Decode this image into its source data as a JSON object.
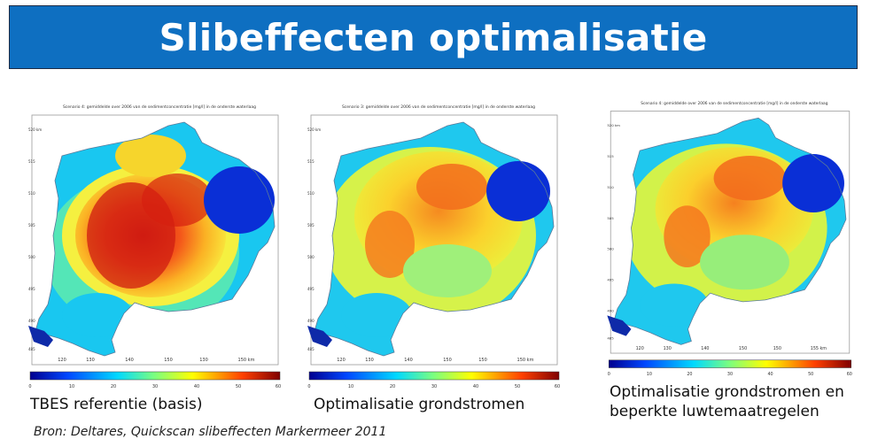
{
  "slide": {
    "title": "Slibeffecten optimalisatie",
    "source": "Bron: Deltares, Quickscan slibeffecten Markermeer 2011",
    "colors": {
      "title_bar": "#0e6fc1",
      "title_text": "#ffffff"
    }
  },
  "panels": [
    {
      "caption": "TBES referentie (basis)",
      "plot_title": "Scenario 4: gemiddelde over 2006 van de sedimentconcentratie [mg/l] in de onderste waterlaag",
      "x_ticks": [
        "120",
        "130",
        "140",
        "150",
        "130",
        "150 km"
      ],
      "y_ticks": [
        "520 km",
        "515",
        "510",
        "505",
        "500",
        "495",
        "490",
        "485"
      ],
      "scale_ticks": [
        "0",
        "10",
        "20",
        "30",
        "40",
        "50",
        "60"
      ],
      "intensity": "high"
    },
    {
      "caption": "Optimalisatie grondstromen",
      "plot_title": "Scenario 3: gemiddelde over 2006 van de sedimentconcentratie [mg/l] in de onderste waterlaag",
      "x_ticks": [
        "120",
        "130",
        "140",
        "150",
        "150",
        "150 km"
      ],
      "y_ticks": [
        "520 km",
        "515",
        "510",
        "505",
        "500",
        "495",
        "490",
        "485"
      ],
      "scale_ticks": [
        "0",
        "10",
        "20",
        "30",
        "40",
        "50",
        "60"
      ],
      "intensity": "medium"
    },
    {
      "caption_lines": [
        "Optimalisatie grondstromen en",
        "beperkte luwtemaatregelen"
      ],
      "plot_title": "Scenario 4: gemiddelde over 2006 van de sedimentconcentratie [mg/l] in de onderste waterlaag",
      "x_ticks": [
        "120",
        "130",
        "140",
        "150",
        "150",
        "155 km"
      ],
      "y_ticks": [
        "520 km",
        "515",
        "510",
        "505",
        "500",
        "495",
        "490",
        "485"
      ],
      "scale_ticks": [
        "0",
        "10",
        "20",
        "30",
        "40",
        "50",
        "60"
      ],
      "intensity": "medium"
    }
  ]
}
